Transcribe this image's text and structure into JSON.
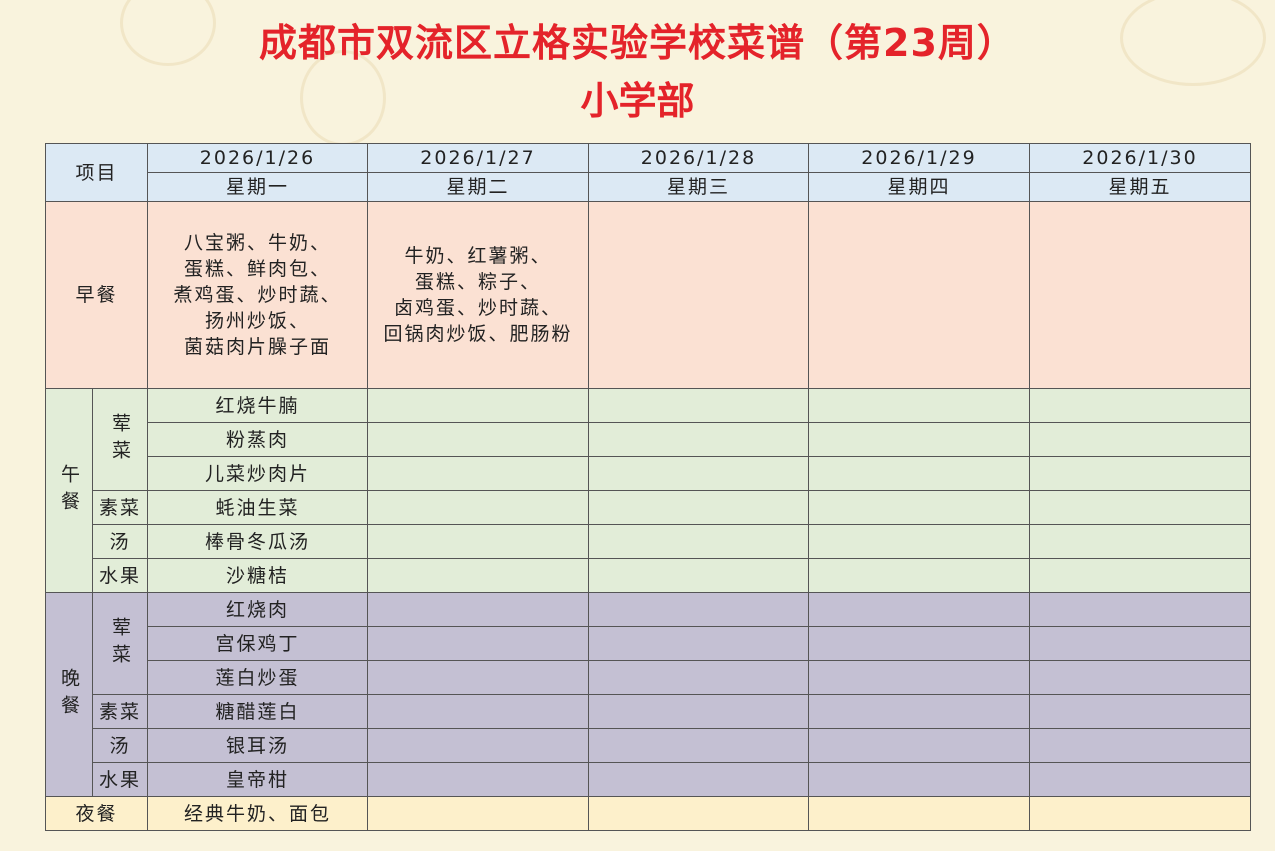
{
  "title": "成都市双流区立格实验学校菜谱（第23周）",
  "subtitle": "小学部",
  "header": {
    "item_label": "项目",
    "days": [
      {
        "date": "2026/1/26",
        "weekday": "星期一"
      },
      {
        "date": "2026/1/27",
        "weekday": "星期二"
      },
      {
        "date": "2026/1/28",
        "weekday": "星期三"
      },
      {
        "date": "2026/1/29",
        "weekday": "星期四"
      },
      {
        "date": "2026/1/30",
        "weekday": "星期五"
      }
    ]
  },
  "breakfast": {
    "label": "早餐",
    "menu": [
      "八宝粥、牛奶、\n蛋糕、鲜肉包、\n煮鸡蛋、炒时蔬、\n扬州炒饭、\n菌菇肉片臊子面",
      "牛奶、红薯粥、\n蛋糕、粽子、\n卤鸡蛋、炒时蔬、\n回锅肉炒饭、肥肠粉",
      "",
      "",
      ""
    ]
  },
  "lunch": {
    "label": "午餐",
    "meat_label": "荤菜",
    "veg_label": "素菜",
    "soup_label": "汤",
    "fruit_label": "水果",
    "meat": [
      "红烧牛腩",
      "粉蒸肉",
      "儿菜炒肉片"
    ],
    "veg": "蚝油生菜",
    "soup": "棒骨冬瓜汤",
    "fruit": "沙糖桔"
  },
  "dinner": {
    "label": "晚餐",
    "meat_label": "荤菜",
    "veg_label": "素菜",
    "soup_label": "汤",
    "fruit_label": "水果",
    "meat": [
      "红烧肉",
      "宫保鸡丁",
      "莲白炒蛋"
    ],
    "veg": "糖醋莲白",
    "soup": "银耳汤",
    "fruit": "皇帝柑"
  },
  "night": {
    "label": "夜餐",
    "menu": "经典牛奶、面包"
  },
  "colors": {
    "title": "#e4232a",
    "header": "#dce9f4",
    "breakfast": "#fbe1d3",
    "lunch": "#e2edd8",
    "dinner": "#c4c0d3",
    "night": "#fdf0cb",
    "background": "#f9f3dd"
  }
}
